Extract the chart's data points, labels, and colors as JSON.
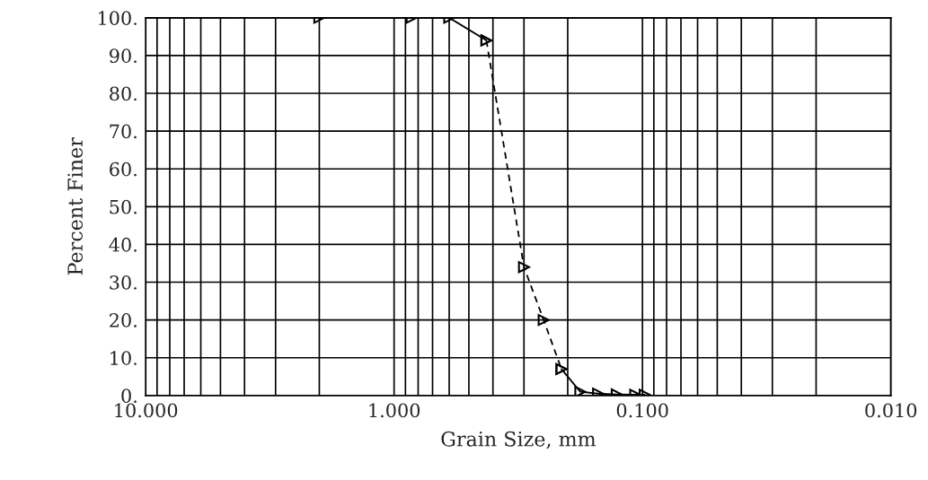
{
  "chart_data": {
    "type": "line",
    "xlabel": "Grain Size, mm",
    "ylabel": "Percent Finer",
    "series": [
      {
        "color": "#000000",
        "line_style": "solid",
        "x": [
          2.0,
          0.85,
          0.6,
          0.425
        ],
        "values": [
          100,
          100,
          100,
          94
        ]
      },
      {
        "color": "#000000",
        "line_style": "dashed",
        "x": [
          0.425,
          0.3,
          0.25,
          0.212
        ],
        "values": [
          94,
          34,
          20,
          7
        ]
      },
      {
        "color": "#000000",
        "line_style": "solid",
        "x": [
          0.212,
          0.178,
          0.151,
          0.127,
          0.107,
          0.098
        ],
        "values": [
          7,
          1,
          0.5,
          0.3,
          0.2,
          0.2
        ]
      }
    ],
    "log": "x",
    "xlim": [
      10,
      0.01
    ],
    "xticks": [
      {
        "value": 10,
        "label": "10.000"
      },
      {
        "value": 1,
        "label": "1.000"
      },
      {
        "value": 0.1,
        "label": "0.100"
      },
      {
        "value": 0.01,
        "label": "0.010"
      }
    ],
    "ylim": [
      0,
      100
    ],
    "yticks": [
      {
        "value": 0,
        "label": "0."
      },
      {
        "value": 10,
        "label": "10."
      },
      {
        "value": 20,
        "label": "20."
      },
      {
        "value": 30,
        "label": "30."
      },
      {
        "value": 40,
        "label": "40."
      },
      {
        "value": 50,
        "label": "50."
      },
      {
        "value": 60,
        "label": "60."
      },
      {
        "value": 70,
        "label": "70."
      },
      {
        "value": 80,
        "label": "80."
      },
      {
        "value": 90,
        "label": "90."
      },
      {
        "value": 100,
        "label": "100."
      }
    ],
    "grid": true,
    "marker": "triangle",
    "legend": false
  }
}
